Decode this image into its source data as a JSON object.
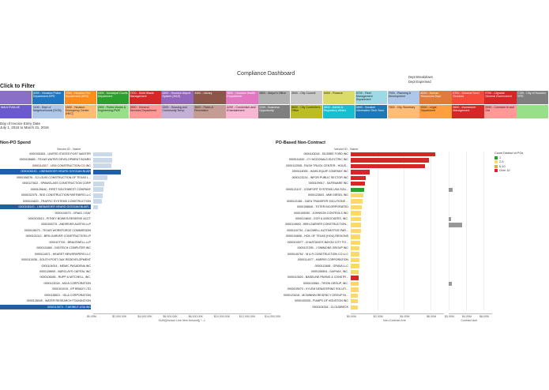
{
  "dashboard_title": "Compliance Dashboard",
  "dept_breakdown": {
    "title": "Dept Breakdown",
    "subtitle": "Dept Expensed"
  },
  "filter_title": "Click to Filter",
  "tiles": [
    {
      "label": "",
      "color": "#8a6fc7",
      "dark": false
    },
    {
      "label": "5000 - Houston Police Department-HPD",
      "color": "#1f77c4",
      "dark": false
    },
    {
      "label": "1000 - Houston Fire Department (HFD)",
      "color": "#ff8c1a",
      "dark": false
    },
    {
      "label": "1600 - Municipal Courts Department",
      "color": "#2ca02c",
      "dark": false
    },
    {
      "label": "2700 - Solid Waste Management",
      "color": "#d62728",
      "dark": false
    },
    {
      "label": "2800 - Houston Airport System (HAS)",
      "color": "#9467bd",
      "dark": false
    },
    {
      "label": "3400 - Library",
      "color": "#8c564b",
      "dark": false
    },
    {
      "label": "3600 - Houston Health Department",
      "color": "#e377c2",
      "dark": false
    },
    {
      "label": "3800 - Mayor's Office",
      "color": "#b0b0b0",
      "dark": true
    },
    {
      "label": "3500 - City Council",
      "color": "#c9c9c9",
      "dark": true
    },
    {
      "label": "6400 - Finance",
      "color": "#dbdb6a",
      "dark": true
    },
    {
      "label": "6700 - Fleet Management Department",
      "color": "#9edae5",
      "dark": true
    },
    {
      "label": "7000 - Planning & Development",
      "color": "#aec7e8",
      "dark": true
    },
    {
      "label": "8000 - Human Resources Dept",
      "color": "#e07b39",
      "dark": false
    },
    {
      "label": "8700 - General Servi Services",
      "color": "#f44b3a",
      "dark": false
    },
    {
      "label": "9700 - Citywide General Government",
      "color": "#d62728",
      "dark": false
    },
    {
      "label": "CON - City of Houston SPD",
      "color": "#7f7f7f",
      "dark": false
    },
    {
      "label": "#MULTIVALUE",
      "color": "#6a5acd",
      "dark": false
    },
    {
      "label": "1100 - Dept of Neighborhoods (DON)",
      "color": "#aec7e8",
      "dark": true
    },
    {
      "label": "1500 - Houston Emergency Center (HEC)",
      "color": "#ffbb78",
      "dark": true
    },
    {
      "label": "2000 - Public Works & Engineering-PWE",
      "color": "#98df8a",
      "dark": true
    },
    {
      "label": "2500 - General Services Department",
      "color": "#ff9896",
      "dark": true
    },
    {
      "label": "3200 - Housing and Community Devp.",
      "color": "#c5b0d5",
      "dark": true
    },
    {
      "label": "3600 - Parks & Recreation",
      "color": "#c49c94",
      "dark": true
    },
    {
      "label": "4200 - Convention and Entertainment",
      "color": "#f7b6d2",
      "dark": true
    },
    {
      "label": "3100 - Business Opportunity",
      "color": "#7f7f7f",
      "dark": false
    },
    {
      "label": "8800 - City Controller's Office",
      "color": "#bcbd22",
      "dark": true
    },
    {
      "label": "6500 - Admin & Regulatory Affairs",
      "color": "#17becf",
      "dark": false
    },
    {
      "label": "6800 - Houston Information Tech Svcs",
      "color": "#1f77b4",
      "dark": false
    },
    {
      "label": "7500 - City Secretary",
      "color": "#ffbb78",
      "dark": true
    },
    {
      "label": "9000 - Legal Department",
      "color": "#ff9f40",
      "dark": true
    },
    {
      "label": "9600 - Investment Management",
      "color": "#d62728",
      "dark": false
    },
    {
      "label": "9999 - Constant In and Out",
      "color": "#ff9896",
      "dark": true
    },
    {
      "label": "",
      "color": "#98df8a",
      "dark": true
    }
  ],
  "date_block": {
    "label": "Day of Invoice Entry Date",
    "range": "July 1, 2015 to March 31, 2016"
  },
  "nonpo": {
    "title": "Non-PO Spend",
    "col_header": "Vendor ID - Name",
    "axis_title": "SUM([Invoice Line Item Amount]) * -1",
    "ticks": [
      "$0.00M",
      "$2,000.00K",
      "$4,000.00K",
      "$6,000.00K",
      "$8,000.00K",
      "$10,000.00K",
      "$12,000.00K",
      "$14,000.00K"
    ],
    "vendors": [
      "0000105453 - UNITED STATES POST MASTER",
      "0000106689 - TEXAS WATER DEVELOPMENT BOARD",
      "0000114317 - LEM CONSTRUCTION CO INC",
      "0000108143 - LINEBARGER HEARD GOGGAN BLAIR",
      "0000108276 - SJ LOUIS CONSTRUCTION OF TEXAS L...",
      "0000127832 - SPAWGLASS CONSTRUCTION CORP",
      "0000109640 - FIRST SOUTHWEST COMPANY",
      "0000102375 - SKE CONSTRUCTION PARTNERS LLC",
      "0000116620 - TRAFFIC SYSTEMS CONSTRUCTION",
      "0000108143 - LINEBARGER HEARD GOGGAN BLAIR...",
      "0000124673 - CRAIG J DAY",
      "0000102613 - PITNEY BOWES-RESERVE ACCT",
      "0000100275 - ANDREWS AUSTIN LLP",
      "0000108270 - TEXAS WORKFORCE COMMISSION",
      "0000101012 - BRH-GARVER CONSTRUCTION LP",
      "0000107700 - BRACEWELL LLP",
      "0000111860 - DIGITECH COMPUTER INC",
      "0000114671 - HEARST NEWSPAPERS LLC",
      "0000110038 - SOUTH POST OAK REDEVELOPMENT",
      "0000104914 - MEMIC PASADENA INC",
      "0000128605 - BARCLAYS CAPITAL INC",
      "0000106265 - RUPP & MITCHELL, INC.",
      "0000123018 - MICA CORPORATION",
      "0000101019 - EP BRADY LTD",
      "0000138521 - GILA CORPORATION",
      "0000128049 - WATER RESEARCH FOUNDATION",
      "0000113074 - T-MOBILE USA INC"
    ],
    "values_k": [
      1520,
      1480,
      1450,
      2150,
      1150,
      900,
      820,
      760,
      700,
      380,
      0,
      0,
      0,
      0,
      0,
      0,
      0,
      0,
      0,
      0,
      0,
      0,
      0,
      0,
      0,
      0,
      0
    ],
    "highlight": [
      3,
      9,
      26
    ]
  },
  "pob": {
    "title": "PO-Based Non-Contract",
    "col_header": "Vendor ID - Name",
    "axis_title": "Non-Contract Amt",
    "ticks": [
      "$0.00M",
      "$2.00M",
      "$4.00M",
      "$6.00M"
    ],
    "axis2_title": "Contract Amt",
    "ticks2": [
      "$0.00M",
      "$4.00M",
      "$8.00M"
    ],
    "vendors": [
      "0000143018 - SILSBEE FORD INC",
      "0000111632 - CY MCDONALD ELECTRIC INC",
      "0000112008 - RUSH TRUCK CENTER - HOUS...",
      "0000116095 - HAHN EQUIP COMPANY INC",
      "0000123214 - INFOR PUBLIC SECTOR INC",
      "0000109917 - SAFEWARE INC",
      "0000121107 - COMFORT SYSTEMS USA SOU...",
      "0000123603 - MMI DIESEL INC",
      "0000121081 - DATA TRANSFER SOLUTIONS ...",
      "0000108846 - TOTER INCORPORATED",
      "0000109250 - JOHNSON CONTROLS INC",
      "0000124843 - GCR & ASSOCIATES, INC.",
      "0000119602 - BRH-GARVER CONSTRUCTION...",
      "0000110734 - CALDWELL AUTOMOTIVE PAR...",
      "0000104808 - HOIL OF TEXAS (HOU) REGIONS",
      "0000102677 - CHASTANG'S BAYOU CITY FO...",
      "0000137295 - J SIMMONS GROUP INC",
      "0000140762 - M & R CONSTRUCTION CO LLC",
      "0000114077 - HARRIS CORPORATION",
      "0000113468 - GRAVA LLC",
      "0000106504 - GAPVAX, INC.",
      "0000110620 - BASELINE PAVING & CONSTR...",
      "0000102664 - TIRON GROUP, INC.",
      "0000109070 - XYLEM DEWATERING SOLUTI...",
      "0000123418 - MCMINNIN REGENCY GROUP IN...",
      "0000100205 - PUMPS OF HOUSTON INC",
      "0000104334 - CLOUDBECK"
    ],
    "non_contract_m": [
      6.35,
      5.9,
      5.55,
      1.4,
      1.15,
      1.05,
      1.0,
      0.95,
      0.9,
      0.85,
      0.8,
      0.8,
      0.75,
      0.75,
      0.72,
      0.7,
      0.68,
      0.67,
      0.65,
      0.63,
      0.62,
      0.6,
      0.58,
      0.57,
      0.56,
      0.55,
      0.54
    ],
    "colors": [
      "#d62728",
      "#d62728",
      "#d62728",
      "#d62728",
      "#d62728",
      "#d62728",
      "#2ca02c",
      "#ffd966",
      "#ffd966",
      "#ffd966",
      "#ffd966",
      "#ffd966",
      "#ffd966",
      "#ffd966",
      "#ffd966",
      "#ffd966",
      "#ffd966",
      "#ffd966",
      "#ffd966",
      "#ffd966",
      "#ffd966",
      "#d62728",
      "#ffd966",
      "#ffd966",
      "#ffd966",
      "#ffd966",
      "#ffd966"
    ],
    "contract_m": [
      0,
      0,
      0,
      0,
      0,
      0,
      0.9,
      0,
      0,
      0,
      0,
      0.6,
      3.0,
      0,
      0,
      0,
      0,
      0,
      0,
      0,
      0,
      0,
      0.7,
      0,
      0,
      0,
      0
    ]
  },
  "legend": {
    "title": "Count Distinct of POs",
    "items": [
      {
        "label": "1",
        "color": "#2ca02c"
      },
      {
        "label": "2-5",
        "color": "#ffd966"
      },
      {
        "label": "6-10",
        "color": "#f4a940"
      },
      {
        "label": "Over 10",
        "color": "#d62728"
      }
    ]
  }
}
